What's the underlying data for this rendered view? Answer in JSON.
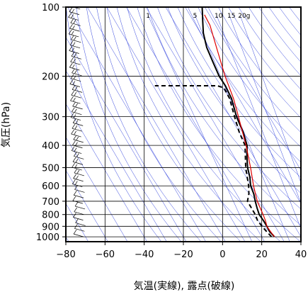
{
  "chart_data": {
    "type": "line",
    "chart_kind": "skew-T log-P diagram",
    "xlabel": "気温(実線), 露点(破線)",
    "ylabel": "気圧(hPa)",
    "xlim": [
      -80,
      40
    ],
    "ylim": [
      1050,
      100
    ],
    "y_scale": "log",
    "x_ticks": [
      -80,
      -60,
      -40,
      -20,
      0,
      20,
      40
    ],
    "x_tick_labels": [
      "−80",
      "−60",
      "−40",
      "−20",
      "0",
      "20",
      "40"
    ],
    "y_ticks": [
      100,
      200,
      300,
      400,
      500,
      600,
      700,
      800,
      900,
      1000
    ],
    "y_tick_labels": [
      "100",
      "200",
      "300",
      "400",
      "500",
      "600",
      "700",
      "800",
      "900",
      "1000"
    ],
    "grid": true,
    "mixing_ratio_labels": [
      "1",
      "5",
      "10",
      "15",
      "20g"
    ],
    "colors": {
      "temperature": "#000000",
      "dewpoint": "#000000",
      "parcel": "#e00000",
      "guide_lines": "#3344dd",
      "grid": "#000000",
      "wind_barb": "#000000"
    },
    "series": [
      {
        "role": "temperature",
        "style": "solid",
        "points": [
          {
            "p": 1000,
            "t": 26.5
          },
          {
            "p": 980,
            "t": 25.0
          },
          {
            "p": 950,
            "t": 22.5
          },
          {
            "p": 900,
            "t": 19.5
          },
          {
            "p": 850,
            "t": 16.0
          },
          {
            "p": 800,
            "t": 12.0
          },
          {
            "p": 750,
            "t": 9.0
          },
          {
            "p": 700,
            "t": 6.0
          },
          {
            "p": 650,
            "t": 3.0
          },
          {
            "p": 600,
            "t": -1.0
          },
          {
            "p": 550,
            "t": -4.0
          },
          {
            "p": 500,
            "t": -8.0
          },
          {
            "p": 450,
            "t": -11.5
          },
          {
            "p": 400,
            "t": -15.0
          },
          {
            "p": 350,
            "t": -21.0
          },
          {
            "p": 300,
            "t": -29.0
          },
          {
            "p": 250,
            "t": -37.0
          },
          {
            "p": 220,
            "t": -44.0
          },
          {
            "p": 200,
            "t": -50.0
          },
          {
            "p": 175,
            "t": -57.0
          },
          {
            "p": 150,
            "t": -65.0
          },
          {
            "p": 130,
            "t": -71.0
          },
          {
            "p": 115,
            "t": -75.0
          },
          {
            "p": 108,
            "t": -77.0
          },
          {
            "p": 100,
            "t": -79.5
          }
        ]
      },
      {
        "role": "dewpoint",
        "style": "dashed",
        "points": [
          {
            "p": 1000,
            "t": 25.0
          },
          {
            "p": 950,
            "t": 21.0
          },
          {
            "p": 900,
            "t": 17.0
          },
          {
            "p": 850,
            "t": 13.0
          },
          {
            "p": 800,
            "t": 10.0
          },
          {
            "p": 700,
            "t": 2.0
          },
          {
            "p": 650,
            "t": 0.5
          },
          {
            "p": 600,
            "t": -2.0
          },
          {
            "p": 500,
            "t": -9.0
          },
          {
            "p": 400,
            "t": -16.0
          },
          {
            "p": 350,
            "t": -23.0
          },
          {
            "p": 300,
            "t": -30.0
          },
          {
            "p": 250,
            "t": -38.0
          },
          {
            "p": 225,
            "t": -44.0
          },
          {
            "p": 220,
            "t": -48.0
          },
          {
            "p": 220,
            "t": -80.0
          }
        ]
      },
      {
        "role": "parcel",
        "style": "solid",
        "points": [
          {
            "p": 1000,
            "t": 26.5
          },
          {
            "p": 950,
            "t": 23.0
          },
          {
            "p": 900,
            "t": 19.5
          },
          {
            "p": 850,
            "t": 17.0
          },
          {
            "p": 800,
            "t": 14.0
          },
          {
            "p": 700,
            "t": 7.0
          },
          {
            "p": 600,
            "t": 0.5
          },
          {
            "p": 500,
            "t": -6.5
          },
          {
            "p": 400,
            "t": -15.5
          },
          {
            "p": 300,
            "t": -28.0
          },
          {
            "p": 250,
            "t": -36.0
          },
          {
            "p": 200,
            "t": -47.0
          },
          {
            "p": 150,
            "t": -60.0
          },
          {
            "p": 120,
            "t": -70.0
          },
          {
            "p": 108,
            "t": -76.0
          }
        ]
      }
    ],
    "wind_profile": {
      "start_pressure": 1000,
      "end_pressure": 102,
      "count": 42
    }
  }
}
